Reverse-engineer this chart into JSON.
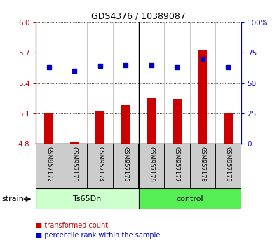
{
  "title": "GDS4376 / 10389087",
  "samples": [
    "GSM957172",
    "GSM957173",
    "GSM957174",
    "GSM957175",
    "GSM957176",
    "GSM957177",
    "GSM957178",
    "GSM957179"
  ],
  "red_values": [
    5.1,
    4.82,
    5.12,
    5.18,
    5.25,
    5.24,
    5.73,
    5.1
  ],
  "blue_values_pct": [
    63,
    60,
    64,
    65,
    65,
    63,
    70,
    63
  ],
  "ylim_left": [
    4.8,
    6.0
  ],
  "ylim_right": [
    0,
    100
  ],
  "yticks_left": [
    4.8,
    5.1,
    5.4,
    5.7,
    6.0
  ],
  "yticks_right": [
    0,
    25,
    50,
    75,
    100
  ],
  "bar_color": "#cc0000",
  "dot_color": "#0000cc",
  "bar_bottom": 4.8,
  "group1_label": "Ts65Dn",
  "group1_color": "#ccffcc",
  "group2_label": "control",
  "group2_color": "#55ee55",
  "legend_items": [
    {
      "label": "transformed count",
      "color": "#cc0000"
    },
    {
      "label": "percentile rank within the sample",
      "color": "#0000cc"
    }
  ],
  "strain_label": "strain",
  "tick_color_left": "#cc0000",
  "tick_color_right": "#0000cc",
  "sample_box_color": "#cccccc",
  "n_group1": 4,
  "n_group2": 4
}
